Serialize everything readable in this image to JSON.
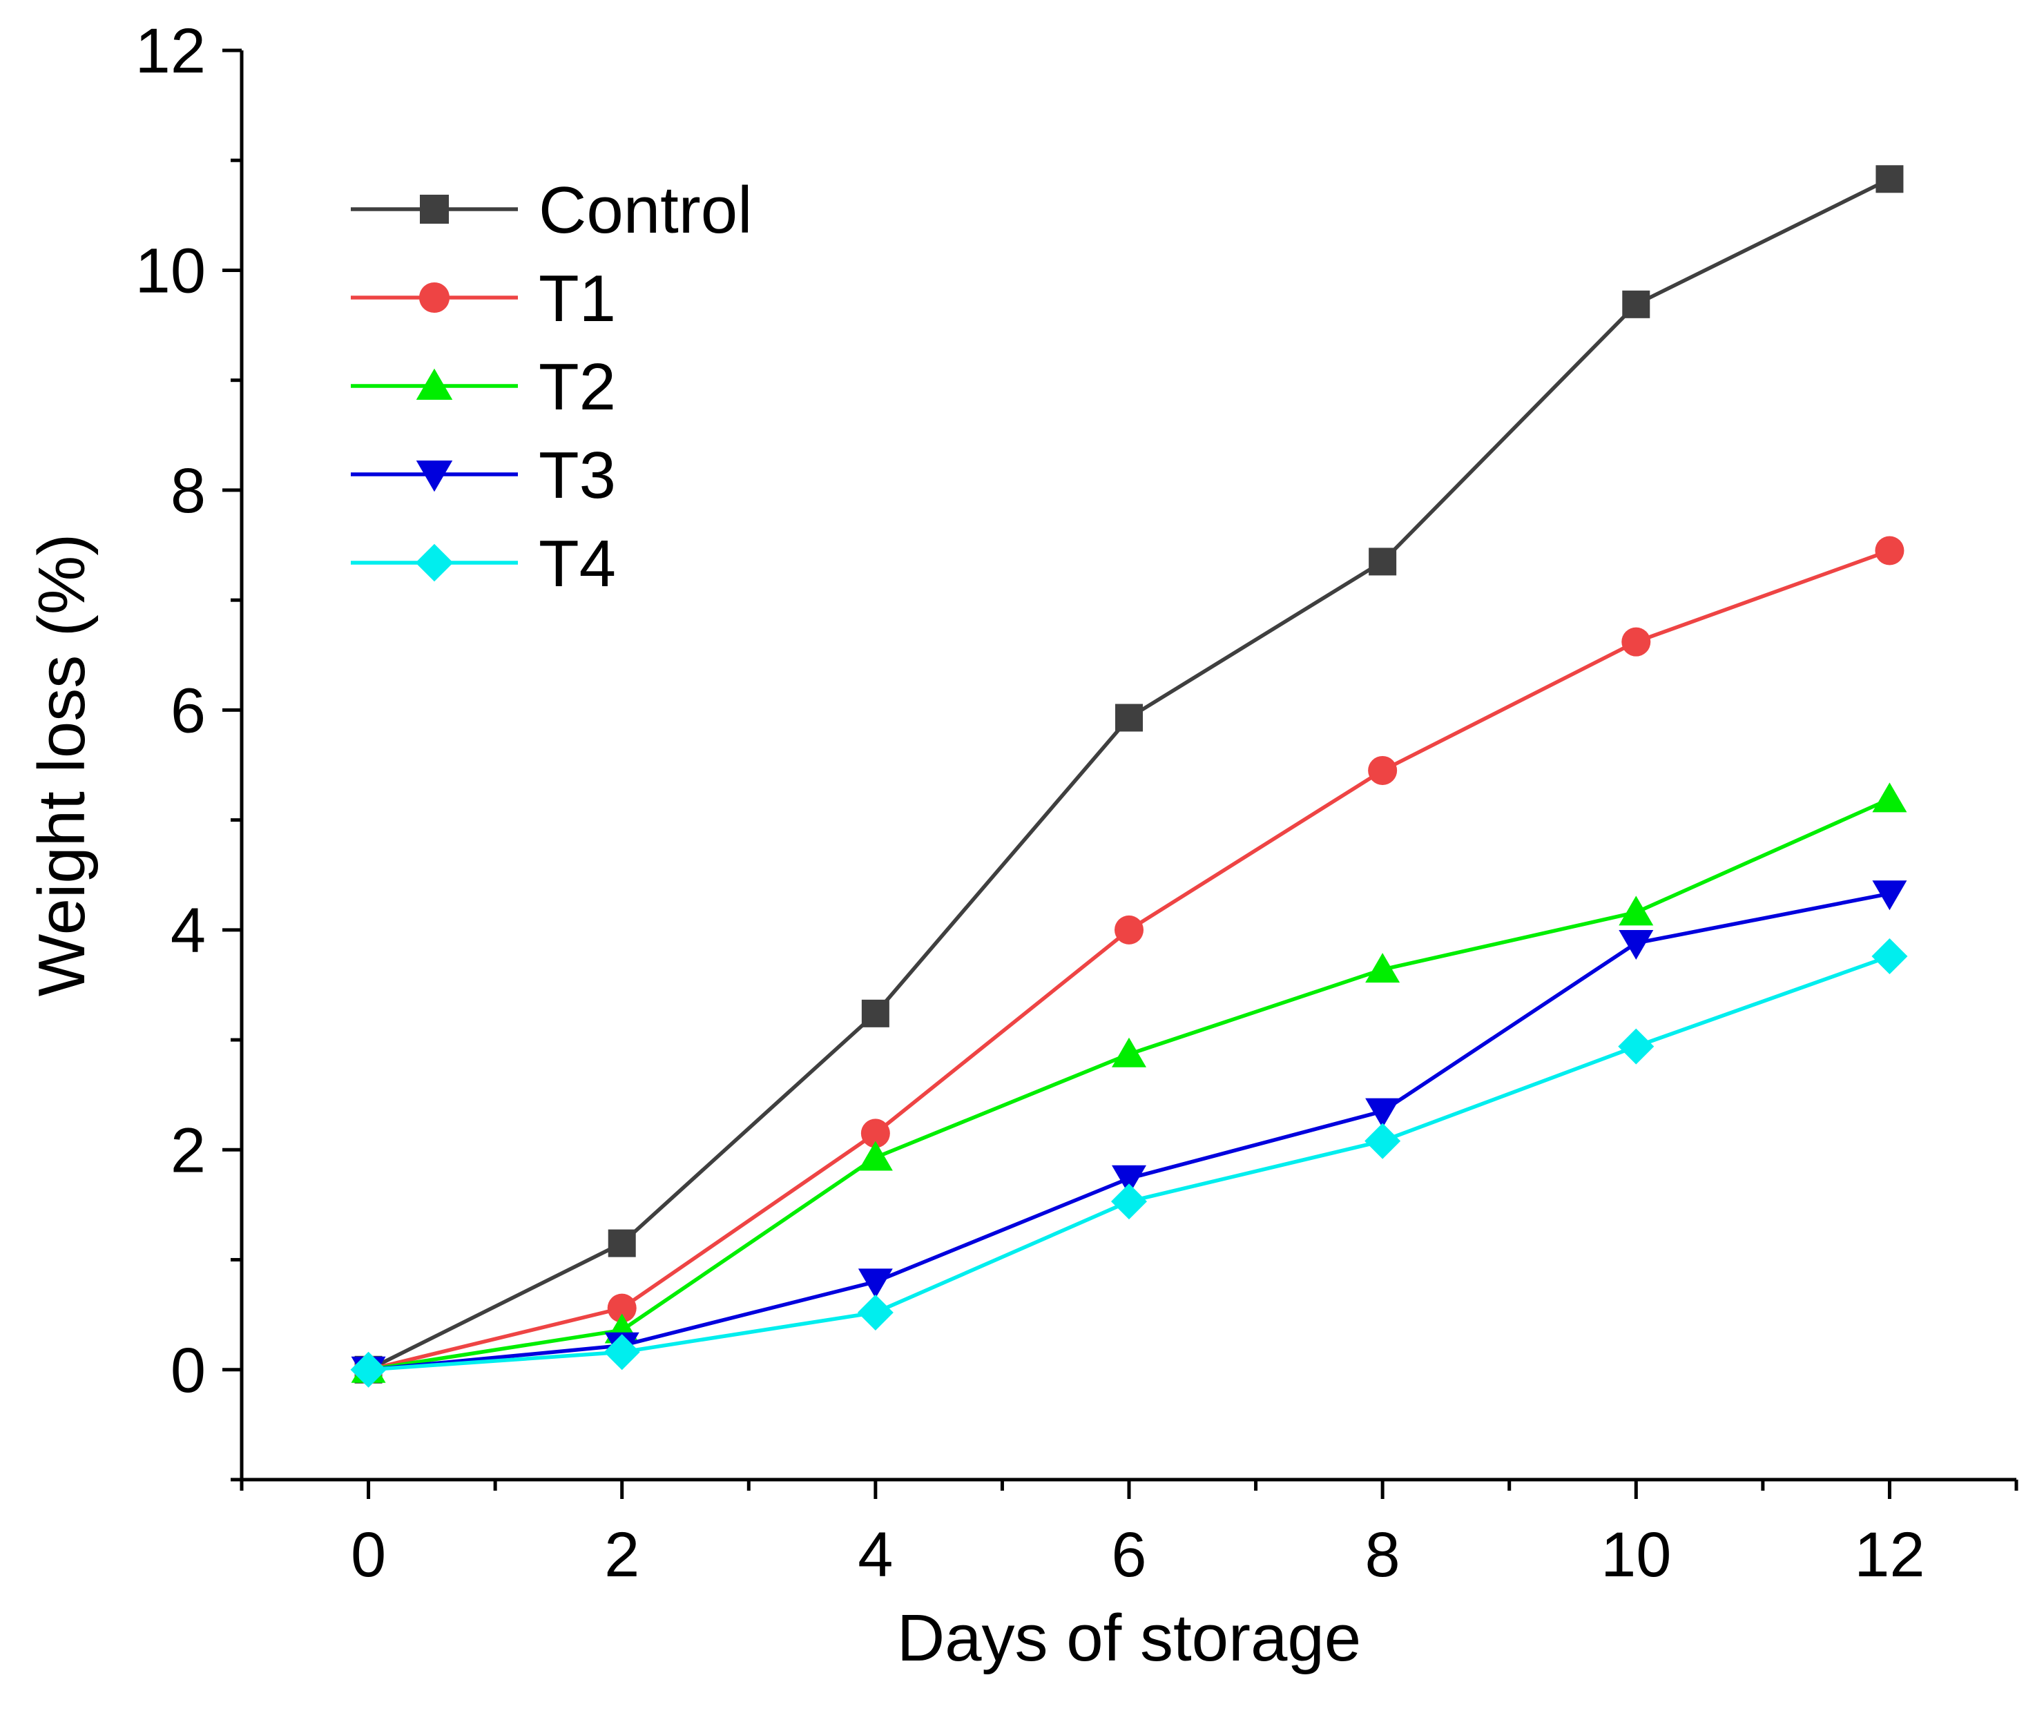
{
  "chart_data": {
    "type": "line",
    "title": "",
    "xlabel": "Days of storage",
    "ylabel": "Weight loss (%)",
    "xlim": [
      -1,
      13
    ],
    "ylim": [
      -1,
      12
    ],
    "x_ticks": [
      0,
      2,
      4,
      6,
      8,
      10,
      12
    ],
    "y_ticks": [
      0,
      2,
      4,
      6,
      8,
      10,
      12
    ],
    "x_tick_labels": [
      "0",
      "2",
      "4",
      "6",
      "8",
      "10",
      "12"
    ],
    "y_tick_labels": [
      "0",
      "2",
      "4",
      "6",
      "8",
      "10",
      "12"
    ],
    "grid": false,
    "legend_position": "top-left",
    "x": [
      0,
      2,
      4,
      6,
      8,
      10,
      12
    ],
    "series": [
      {
        "name": "Control",
        "color": "#3f3f3f",
        "marker": "square",
        "values": [
          0,
          1.15,
          3.24,
          5.93,
          7.35,
          9.69,
          10.83
        ]
      },
      {
        "name": "T1",
        "color": "#ee4444",
        "marker": "circle",
        "values": [
          0,
          0.56,
          2.15,
          4.0,
          5.45,
          6.62,
          7.45
        ]
      },
      {
        "name": "T2",
        "color": "#00ee00",
        "marker": "triangle-up",
        "values": [
          0,
          0.36,
          1.93,
          2.87,
          3.64,
          4.16,
          5.19
        ]
      },
      {
        "name": "T3",
        "color": "#0000dd",
        "marker": "triangle-down",
        "values": [
          0,
          0.22,
          0.8,
          1.74,
          2.35,
          3.88,
          4.33
        ]
      },
      {
        "name": "T4",
        "color": "#00eeee",
        "marker": "diamond",
        "values": [
          0,
          0.16,
          0.52,
          1.53,
          2.08,
          2.94,
          3.76
        ]
      }
    ]
  }
}
